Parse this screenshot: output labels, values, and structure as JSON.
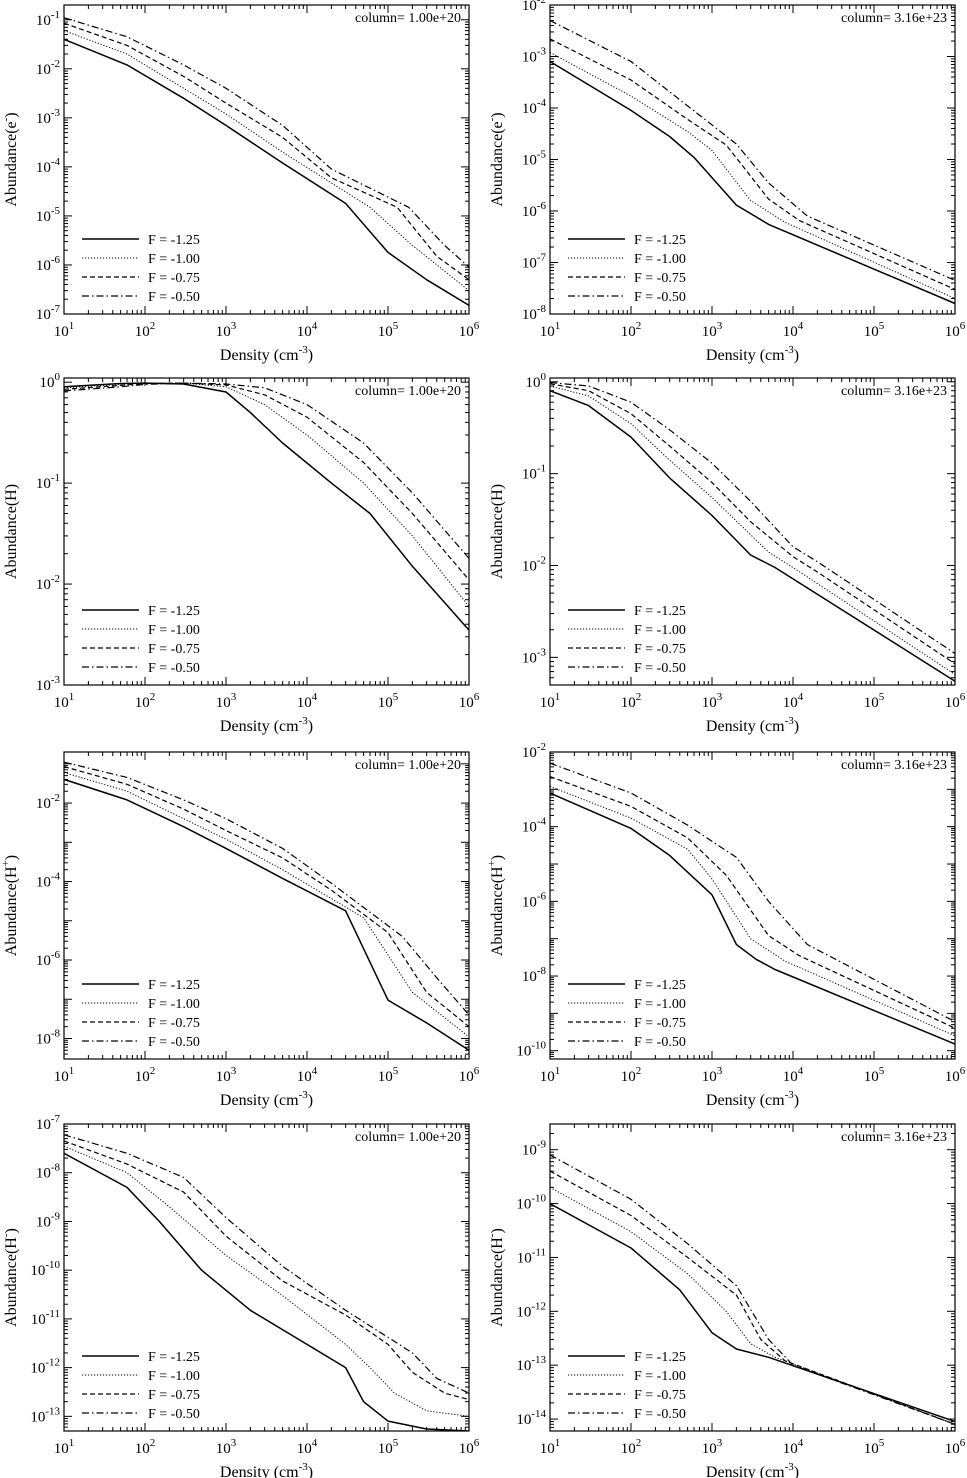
{
  "figure": {
    "legend_entries": [
      "F = -1.25",
      "F = -1.00",
      "F = -0.75",
      "F = -0.50"
    ],
    "line_styles": [
      "solid",
      "dotted",
      "dashed",
      "dashdot"
    ],
    "colors": {
      "axis": "#000000",
      "background": "#ffffff"
    }
  },
  "chart_data": [
    {
      "id": "e_low",
      "type": "line",
      "title": "column= 1.00e+20",
      "xlabel": "Density (cm",
      "xlabel_sup": "-3",
      "xlabel_end": ")",
      "ylabel": "Abundance(e",
      "ylabel_sup": "-",
      "ylabel_end": ")",
      "xscale": "log",
      "yscale": "log",
      "xlim": [
        10,
        1000000
      ],
      "ylim": [
        1e-07,
        0.2
      ],
      "xticks": [
        1,
        2,
        3,
        4,
        5,
        6
      ],
      "yticks": [
        -7,
        -6,
        -5,
        -4,
        -3,
        -2,
        -1
      ],
      "legend": "bottom-left",
      "series": [
        {
          "name": "F = -1.25",
          "x": [
            10,
            60,
            300,
            1000,
            5000,
            30000,
            100000,
            300000,
            1000000
          ],
          "y": [
            0.04,
            0.012,
            0.0025,
            0.0007,
            0.00012,
            1.8e-05,
            1.8e-06,
            5e-07,
            1.5e-07
          ]
        },
        {
          "name": "F = -1.00",
          "x": [
            10,
            60,
            300,
            1000,
            5000,
            60000,
            200000,
            1000000
          ],
          "y": [
            0.06,
            0.02,
            0.004,
            0.0012,
            0.0002,
            1.5e-05,
            2.5e-06,
            3e-07
          ]
        },
        {
          "name": "F = -0.75",
          "x": [
            10,
            60,
            300,
            1000,
            5000,
            20000,
            130000,
            400000,
            1000000
          ],
          "y": [
            0.085,
            0.03,
            0.007,
            0.002,
            0.0004,
            6e-05,
            1.5e-05,
            1.5e-06,
            5e-07
          ]
        },
        {
          "name": "F = -0.50",
          "x": [
            10,
            60,
            300,
            1000,
            5000,
            20000,
            180000,
            500000,
            1000000
          ],
          "y": [
            0.11,
            0.045,
            0.012,
            0.004,
            0.0007,
            9e-05,
            1.5e-05,
            2.5e-06,
            9e-07
          ]
        }
      ]
    },
    {
      "id": "e_high",
      "type": "line",
      "title": "column= 3.16e+23",
      "xlabel": "Density (cm",
      "xlabel_sup": "-3",
      "xlabel_end": ")",
      "ylabel": "Abundance(e",
      "ylabel_sup": "-",
      "ylabel_end": ")",
      "xscale": "log",
      "yscale": "log",
      "xlim": [
        10,
        1000000
      ],
      "ylim": [
        1e-08,
        0.01
      ],
      "xticks": [
        1,
        2,
        3,
        4,
        5,
        6
      ],
      "yticks": [
        -8,
        -7,
        -6,
        -5,
        -4,
        -3,
        -2
      ],
      "legend": "bottom-left",
      "series": [
        {
          "name": "F = -1.25",
          "x": [
            10,
            100,
            300,
            600,
            2000,
            5000,
            1000000
          ],
          "y": [
            0.0008,
            9e-05,
            2.8e-05,
            1.1e-05,
            1.3e-06,
            5.5e-07,
            1.6e-08
          ]
        },
        {
          "name": "F = -1.00",
          "x": [
            10,
            100,
            500,
            1000,
            3000,
            8000,
            1000000
          ],
          "y": [
            0.0012,
            0.00017,
            3.5e-05,
            1.5e-05,
            1.6e-06,
            6e-07,
            2e-08
          ]
        },
        {
          "name": "F = -0.75",
          "x": [
            10,
            100,
            500,
            1500,
            5000,
            12000,
            1000000
          ],
          "y": [
            0.0022,
            0.00035,
            6e-05,
            1.9e-05,
            1.7e-06,
            6.5e-07,
            3e-08
          ]
        },
        {
          "name": "F = -0.50",
          "x": [
            10,
            100,
            500,
            2000,
            5000,
            15000,
            1000000
          ],
          "y": [
            0.005,
            0.0008,
            0.00011,
            2e-05,
            3.5e-06,
            8e-07,
            4.5e-08
          ]
        }
      ]
    },
    {
      "id": "h_low",
      "type": "line",
      "title": "column= 1.00e+20",
      "xlabel": "Density (cm",
      "xlabel_sup": "-3",
      "xlabel_end": ")",
      "ylabel": "Abundance(H)",
      "ylabel_sup": "",
      "ylabel_end": "",
      "xscale": "log",
      "yscale": "log",
      "xlim": [
        10,
        1000000
      ],
      "ylim": [
        0.001,
        1.1
      ],
      "xticks": [
        1,
        2,
        3,
        4,
        5,
        6
      ],
      "yticks": [
        -3,
        -2,
        -1,
        0
      ],
      "legend": "bottom-left",
      "series": [
        {
          "name": "F = -1.25",
          "x": [
            10,
            50,
            100,
            300,
            1000,
            2000,
            5000,
            20000,
            60000,
            200000,
            1000000
          ],
          "y": [
            0.9,
            0.97,
            0.98,
            0.96,
            0.8,
            0.5,
            0.25,
            0.1,
            0.05,
            0.015,
            0.0035
          ]
        },
        {
          "name": "F = -1.00",
          "x": [
            10,
            50,
            100,
            300,
            1000,
            3000,
            10000,
            50000,
            200000,
            1000000
          ],
          "y": [
            0.88,
            0.95,
            0.98,
            0.98,
            0.9,
            0.6,
            0.3,
            0.1,
            0.03,
            0.006
          ]
        },
        {
          "name": "F = -0.75",
          "x": [
            10,
            50,
            100,
            300,
            1000,
            3000,
            10000,
            50000,
            200000,
            1000000
          ],
          "y": [
            0.85,
            0.93,
            0.97,
            0.98,
            0.94,
            0.75,
            0.45,
            0.16,
            0.05,
            0.011
          ]
        },
        {
          "name": "F = -0.50",
          "x": [
            10,
            50,
            100,
            300,
            1000,
            3000,
            10000,
            50000,
            200000,
            1000000
          ],
          "y": [
            0.82,
            0.9,
            0.95,
            0.98,
            0.96,
            0.88,
            0.6,
            0.25,
            0.08,
            0.018
          ]
        }
      ]
    },
    {
      "id": "h_high",
      "type": "line",
      "title": "column= 3.16e+23",
      "xlabel": "Density (cm",
      "xlabel_sup": "-3",
      "xlabel_end": ")",
      "ylabel": "Abundance(H)",
      "ylabel_sup": "",
      "ylabel_end": "",
      "xscale": "log",
      "yscale": "log",
      "xlim": [
        10,
        1000000
      ],
      "ylim": [
        0.0005,
        1.1
      ],
      "xticks": [
        1,
        2,
        3,
        4,
        5,
        6
      ],
      "yticks": [
        -3,
        -2,
        -1,
        0
      ],
      "legend": "bottom-left",
      "series": [
        {
          "name": "F = -1.25",
          "x": [
            10,
            30,
            100,
            300,
            1000,
            3000,
            6000,
            1000000
          ],
          "y": [
            0.8,
            0.55,
            0.25,
            0.09,
            0.035,
            0.013,
            0.0095,
            0.00055
          ]
        },
        {
          "name": "F = -1.00",
          "x": [
            10,
            30,
            100,
            300,
            1000,
            5000,
            10000,
            1000000
          ],
          "y": [
            0.9,
            0.7,
            0.35,
            0.14,
            0.055,
            0.014,
            0.0095,
            0.00065
          ]
        },
        {
          "name": "F = -0.75",
          "x": [
            10,
            30,
            100,
            300,
            1000,
            3000,
            10000,
            20000,
            1000000
          ],
          "y": [
            0.95,
            0.8,
            0.45,
            0.2,
            0.08,
            0.03,
            0.0125,
            0.0085,
            0.00085
          ]
        },
        {
          "name": "F = -0.50",
          "x": [
            10,
            30,
            100,
            300,
            1000,
            3000,
            10000,
            20000,
            1000000
          ],
          "y": [
            0.98,
            0.9,
            0.6,
            0.3,
            0.13,
            0.05,
            0.016,
            0.011,
            0.0011
          ]
        }
      ]
    },
    {
      "id": "hp_low",
      "type": "line",
      "title": "column= 1.00e+20",
      "xlabel": "Density (cm",
      "xlabel_sup": "-3",
      "xlabel_end": ")",
      "ylabel": "Abundance(H",
      "ylabel_sup": "+",
      "ylabel_end": ")",
      "xscale": "log",
      "yscale": "log",
      "xlim": [
        10,
        1000000
      ],
      "ylim": [
        3e-09,
        0.2
      ],
      "xticks": [
        1,
        2,
        3,
        4,
        5,
        6
      ],
      "yticks": [
        -8,
        -6,
        -4,
        -2
      ],
      "legend": "bottom-left",
      "series": [
        {
          "name": "F = -1.25",
          "x": [
            10,
            60,
            300,
            1000,
            5000,
            30000,
            100000,
            300000,
            1000000
          ],
          "y": [
            0.04,
            0.012,
            0.0025,
            0.0007,
            0.00012,
            1.8e-05,
            9.5e-08,
            2.5e-08,
            5e-09
          ]
        },
        {
          "name": "F = -1.00",
          "x": [
            10,
            60,
            300,
            1000,
            5000,
            50000,
            200000,
            1000000
          ],
          "y": [
            0.06,
            0.02,
            0.004,
            0.0012,
            0.0002,
            1.2e-05,
            1.5e-07,
            1.1e-08
          ]
        },
        {
          "name": "F = -0.75",
          "x": [
            10,
            60,
            300,
            1000,
            5000,
            20000,
            100000,
            300000,
            1000000
          ],
          "y": [
            0.085,
            0.03,
            0.007,
            0.002,
            0.0004,
            6e-05,
            5e-06,
            1.5e-07,
            2e-08
          ]
        },
        {
          "name": "F = -0.50",
          "x": [
            10,
            60,
            300,
            1000,
            5000,
            20000,
            150000,
            400000,
            1000000
          ],
          "y": [
            0.11,
            0.045,
            0.012,
            0.004,
            0.0007,
            9e-05,
            4e-06,
            3.5e-07,
            4e-08
          ]
        }
      ]
    },
    {
      "id": "hp_high",
      "type": "line",
      "title": "column= 3.16e+23",
      "xlabel": "Density (cm",
      "xlabel_sup": "-3",
      "xlabel_end": ")",
      "ylabel": "Abundance(H",
      "ylabel_sup": "+",
      "ylabel_end": ")",
      "xscale": "log",
      "yscale": "log",
      "xlim": [
        10,
        1000000
      ],
      "ylim": [
        6e-11,
        0.01
      ],
      "xticks": [
        1,
        2,
        3,
        4,
        5,
        6
      ],
      "yticks": [
        -10,
        -8,
        -6,
        -4,
        -2
      ],
      "legend": "bottom-left",
      "series": [
        {
          "name": "F = -1.25",
          "x": [
            10,
            100,
            300,
            1000,
            2000,
            3500,
            6000,
            1000000
          ],
          "y": [
            0.0008,
            9e-05,
            1.7e-05,
            1.5e-06,
            7e-08,
            2.8e-08,
            1.5e-08,
            1.5e-10
          ]
        },
        {
          "name": "F = -1.00",
          "x": [
            10,
            100,
            500,
            1000,
            3000,
            8000,
            1000000
          ],
          "y": [
            0.0012,
            0.00017,
            2.5e-05,
            4e-06,
            1e-07,
            2.5e-08,
            2.5e-10
          ]
        },
        {
          "name": "F = -0.75",
          "x": [
            10,
            100,
            500,
            1500,
            5000,
            12000,
            1000000
          ],
          "y": [
            0.0022,
            0.00035,
            5e-05,
            5e-06,
            1.2e-07,
            3.5e-08,
            4e-10
          ]
        },
        {
          "name": "F = -0.50",
          "x": [
            10,
            100,
            500,
            2000,
            5000,
            15000,
            1000000
          ],
          "y": [
            0.005,
            0.0008,
            0.00011,
            1.5e-05,
            1e-06,
            7e-08,
            6e-10
          ]
        }
      ]
    },
    {
      "id": "hm_low",
      "type": "line",
      "title": "column= 1.00e+20",
      "xlabel": "Density (cm",
      "xlabel_sup": "-3",
      "xlabel_end": ")",
      "ylabel": "Abundance(H",
      "ylabel_sup": "-",
      "ylabel_end": ")",
      "xscale": "log",
      "yscale": "log",
      "xlim": [
        10,
        1000000
      ],
      "ylim": [
        5e-14,
        1e-07
      ],
      "xticks": [
        1,
        2,
        3,
        4,
        5,
        6
      ],
      "yticks": [
        -13,
        -12,
        -11,
        -10,
        -9,
        -8,
        -7
      ],
      "legend": "bottom-left",
      "series": [
        {
          "name": "F = -1.25",
          "x": [
            10,
            60,
            150,
            500,
            2000,
            10000,
            30000,
            50000,
            100000,
            300000,
            1000000
          ],
          "y": [
            2.5e-08,
            5e-09,
            1e-09,
            1e-10,
            1.5e-11,
            3e-12,
            1e-12,
            2e-13,
            8e-14,
            5.5e-14,
            5e-14
          ]
        },
        {
          "name": "F = -1.00",
          "x": [
            10,
            60,
            200,
            1000,
            5000,
            30000,
            60000,
            120000,
            300000,
            1000000
          ],
          "y": [
            3.5e-08,
            1e-08,
            2e-09,
            2e-10,
            3e-11,
            3e-12,
            1e-12,
            3e-13,
            1.3e-13,
            1e-13
          ]
        },
        {
          "name": "F = -0.75",
          "x": [
            10,
            60,
            300,
            1000,
            5000,
            30000,
            100000,
            200000,
            500000,
            1000000
          ],
          "y": [
            4.5e-08,
            1.5e-08,
            4e-09,
            5e-10,
            6e-11,
            1.2e-11,
            3e-12,
            8e-13,
            3e-13,
            2.2e-13
          ]
        },
        {
          "name": "F = -0.50",
          "x": [
            10,
            60,
            300,
            1000,
            5000,
            30000,
            200000,
            400000,
            1000000
          ],
          "y": [
            6e-08,
            2.5e-08,
            8e-09,
            1.2e-09,
            1.2e-10,
            1.5e-11,
            2e-12,
            6e-13,
            3e-13
          ]
        }
      ]
    },
    {
      "id": "hm_high",
      "type": "line",
      "title": "column= 3.16e+23",
      "xlabel": "Density (cm",
      "xlabel_sup": "-3",
      "xlabel_end": ")",
      "ylabel": "Abundance(H",
      "ylabel_sup": "-",
      "ylabel_end": ")",
      "xscale": "log",
      "yscale": "log",
      "xlim": [
        10,
        1000000
      ],
      "ylim": [
        6e-15,
        3e-09
      ],
      "xticks": [
        1,
        2,
        3,
        4,
        5,
        6
      ],
      "yticks": [
        -14,
        -13,
        -12,
        -11,
        -10,
        -9
      ],
      "legend": "bottom-left",
      "series": [
        {
          "name": "F = -1.25",
          "x": [
            10,
            100,
            400,
            1000,
            2000,
            5000,
            1000000
          ],
          "y": [
            1e-10,
            1.5e-11,
            2.5e-12,
            4e-13,
            2e-13,
            1.4e-13,
            9e-15
          ]
        },
        {
          "name": "F = -1.00",
          "x": [
            10,
            100,
            500,
            1500,
            3000,
            6000,
            1000000
          ],
          "y": [
            2e-10,
            3e-11,
            5e-12,
            1e-12,
            2.5e-13,
            1.4e-13,
            8e-15
          ]
        },
        {
          "name": "F = -0.75",
          "x": [
            10,
            100,
            500,
            2000,
            4000,
            8000,
            1000000
          ],
          "y": [
            4e-10,
            6e-11,
            1e-11,
            2e-12,
            3e-13,
            1.2e-13,
            8e-15
          ]
        },
        {
          "name": "F = -0.50",
          "x": [
            10,
            100,
            500,
            2000,
            5000,
            10000,
            1000000
          ],
          "y": [
            8e-10,
            1.2e-10,
            1.8e-11,
            3e-12,
            3e-13,
            1e-13,
            8e-15
          ]
        }
      ]
    }
  ]
}
